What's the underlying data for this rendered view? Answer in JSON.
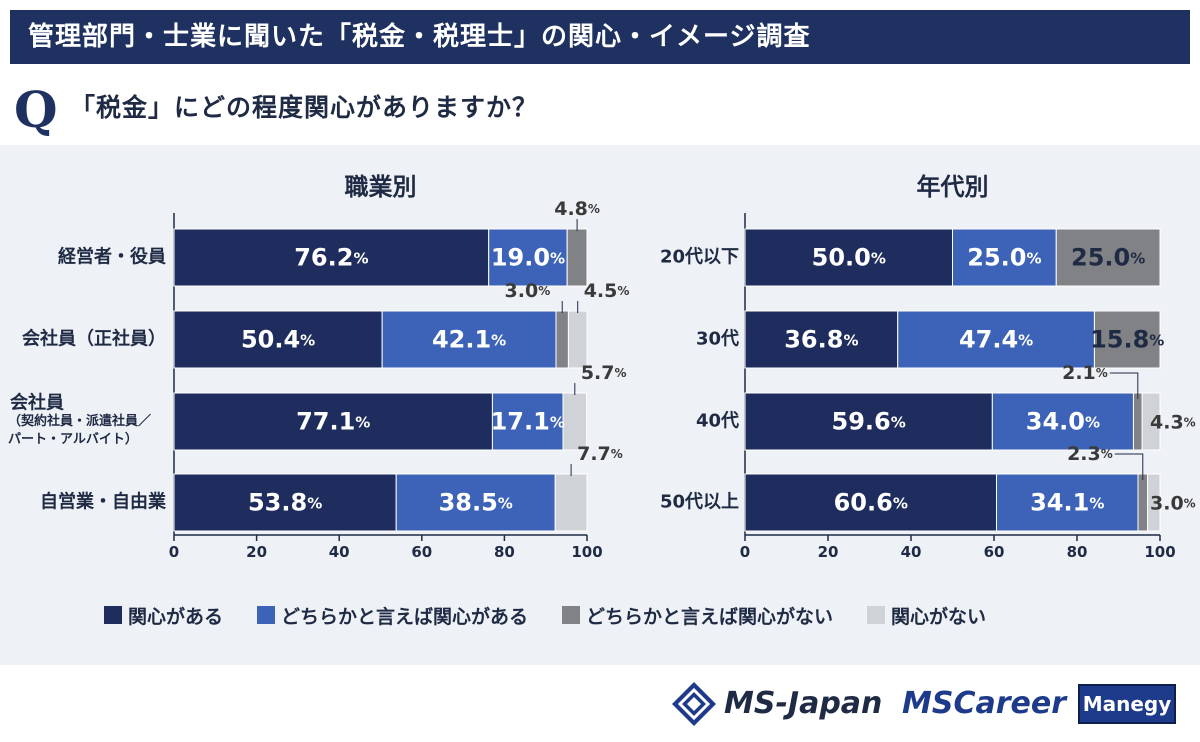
{
  "header": {
    "title": "管理部門・士業に聞いた「税金・税理士」の関心・イメージ調査"
  },
  "question": {
    "mark": "Q",
    "text": "「税金」にどの程度関心がありますか？"
  },
  "colors": {
    "very_interested": "#1e2d5e",
    "somewhat_interested": "#3c63b8",
    "somewhat_not": "#808285",
    "not_interested": "#cfd2d6"
  },
  "legend": [
    {
      "label": "関心がある",
      "color": "#1e2d5e"
    },
    {
      "label": "どちらかと言えば関心がある",
      "color": "#3c63b8"
    },
    {
      "label": "どちらかと言えば関心がない",
      "color": "#808285"
    },
    {
      "label": "関心がない",
      "color": "#cfd2d6"
    }
  ],
  "chart_data": [
    {
      "type": "bar",
      "orientation": "horizontal",
      "stacked": true,
      "title": "職業別",
      "categories": [
        [
          "経営者・役員"
        ],
        [
          "会社員（正社員）"
        ],
        [
          "会社員",
          "（契約社員・派遣社員／",
          "パート・アルバイト）"
        ],
        [
          "自営業・自由業"
        ]
      ],
      "series": [
        {
          "name": "関心がある",
          "values": [
            76.2,
            50.4,
            77.1,
            53.8
          ]
        },
        {
          "name": "どちらかと言えば関心がある",
          "values": [
            19.0,
            42.1,
            17.1,
            38.5
          ]
        },
        {
          "name": "どちらかと言えば関心がない",
          "values": [
            4.8,
            3.0,
            0,
            0
          ]
        },
        {
          "name": "関心がない",
          "values": [
            0,
            4.5,
            5.7,
            7.7
          ]
        }
      ],
      "labels": [
        [
          "76.2",
          "19.0",
          "4.8",
          null
        ],
        [
          "50.4",
          "42.1",
          "3.0",
          "4.5"
        ],
        [
          "77.1",
          "17.1",
          null,
          "5.7"
        ],
        [
          "53.8",
          "38.5",
          null,
          "7.7"
        ]
      ],
      "unit": "%",
      "xlim": [
        0,
        100
      ],
      "xticks": [
        0,
        20,
        40,
        60,
        80,
        100
      ]
    },
    {
      "type": "bar",
      "orientation": "horizontal",
      "stacked": true,
      "title": "年代別",
      "categories": [
        [
          "20代以下"
        ],
        [
          "30代"
        ],
        [
          "40代"
        ],
        [
          "50代以上"
        ]
      ],
      "series": [
        {
          "name": "関心がある",
          "values": [
            50.0,
            36.8,
            59.6,
            60.6
          ]
        },
        {
          "name": "どちらかと言えば関心がある",
          "values": [
            25.0,
            47.4,
            34.0,
            34.1
          ]
        },
        {
          "name": "どちらかと言えば関心がない",
          "values": [
            25.0,
            15.8,
            2.1,
            2.3
          ]
        },
        {
          "name": "関心がない",
          "values": [
            0,
            0,
            4.3,
            3.0
          ]
        }
      ],
      "labels": [
        [
          "50.0",
          "25.0",
          "25.0",
          null
        ],
        [
          "36.8",
          "47.4",
          "15.8",
          null
        ],
        [
          "59.6",
          "34.0",
          "2.1",
          "4.3"
        ],
        [
          "60.6",
          "34.1",
          "2.3",
          "3.0"
        ]
      ],
      "unit": "%",
      "xlim": [
        0,
        100
      ],
      "xticks": [
        0,
        20,
        40,
        60,
        80,
        100
      ]
    }
  ],
  "footer": {
    "logo_msjapan": "MS-Japan",
    "logo_mscareer": "MSCareer",
    "logo_manegy": "Manegy"
  }
}
